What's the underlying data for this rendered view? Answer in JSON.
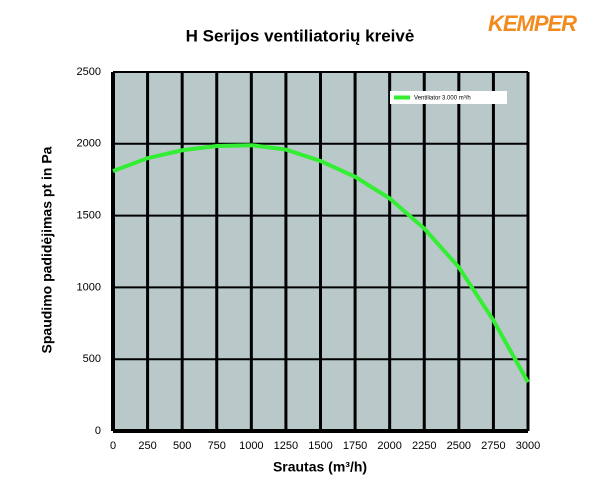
{
  "chart_data": {
    "type": "line",
    "title": "H Serijos ventiliatorių kreivė",
    "logo_text": "KEMPER",
    "x_label": "Srautas (m³/h)",
    "y_label": "Spaudimo padidėjimas pt in Pa",
    "x": [
      0,
      250,
      500,
      750,
      1000,
      1250,
      1500,
      1750,
      2000,
      2250,
      2500,
      2750,
      3000
    ],
    "series": [
      {
        "name": "Ventiliator 3.000 m³/h",
        "color": "#33ee33",
        "values": [
          1810,
          1900,
          1955,
          1985,
          1990,
          1960,
          1880,
          1770,
          1620,
          1410,
          1140,
          770,
          340
        ]
      }
    ],
    "xlim": [
      0,
      3000
    ],
    "xticks": [
      0,
      250,
      500,
      750,
      1000,
      1250,
      1500,
      1750,
      2000,
      2250,
      2500,
      2750,
      3000
    ],
    "ylim": [
      0,
      2500
    ],
    "yticks": [
      0,
      500,
      1000,
      1500,
      2000,
      2500
    ],
    "grid": true,
    "legend": "upper right",
    "background": "#b9c9c9"
  }
}
